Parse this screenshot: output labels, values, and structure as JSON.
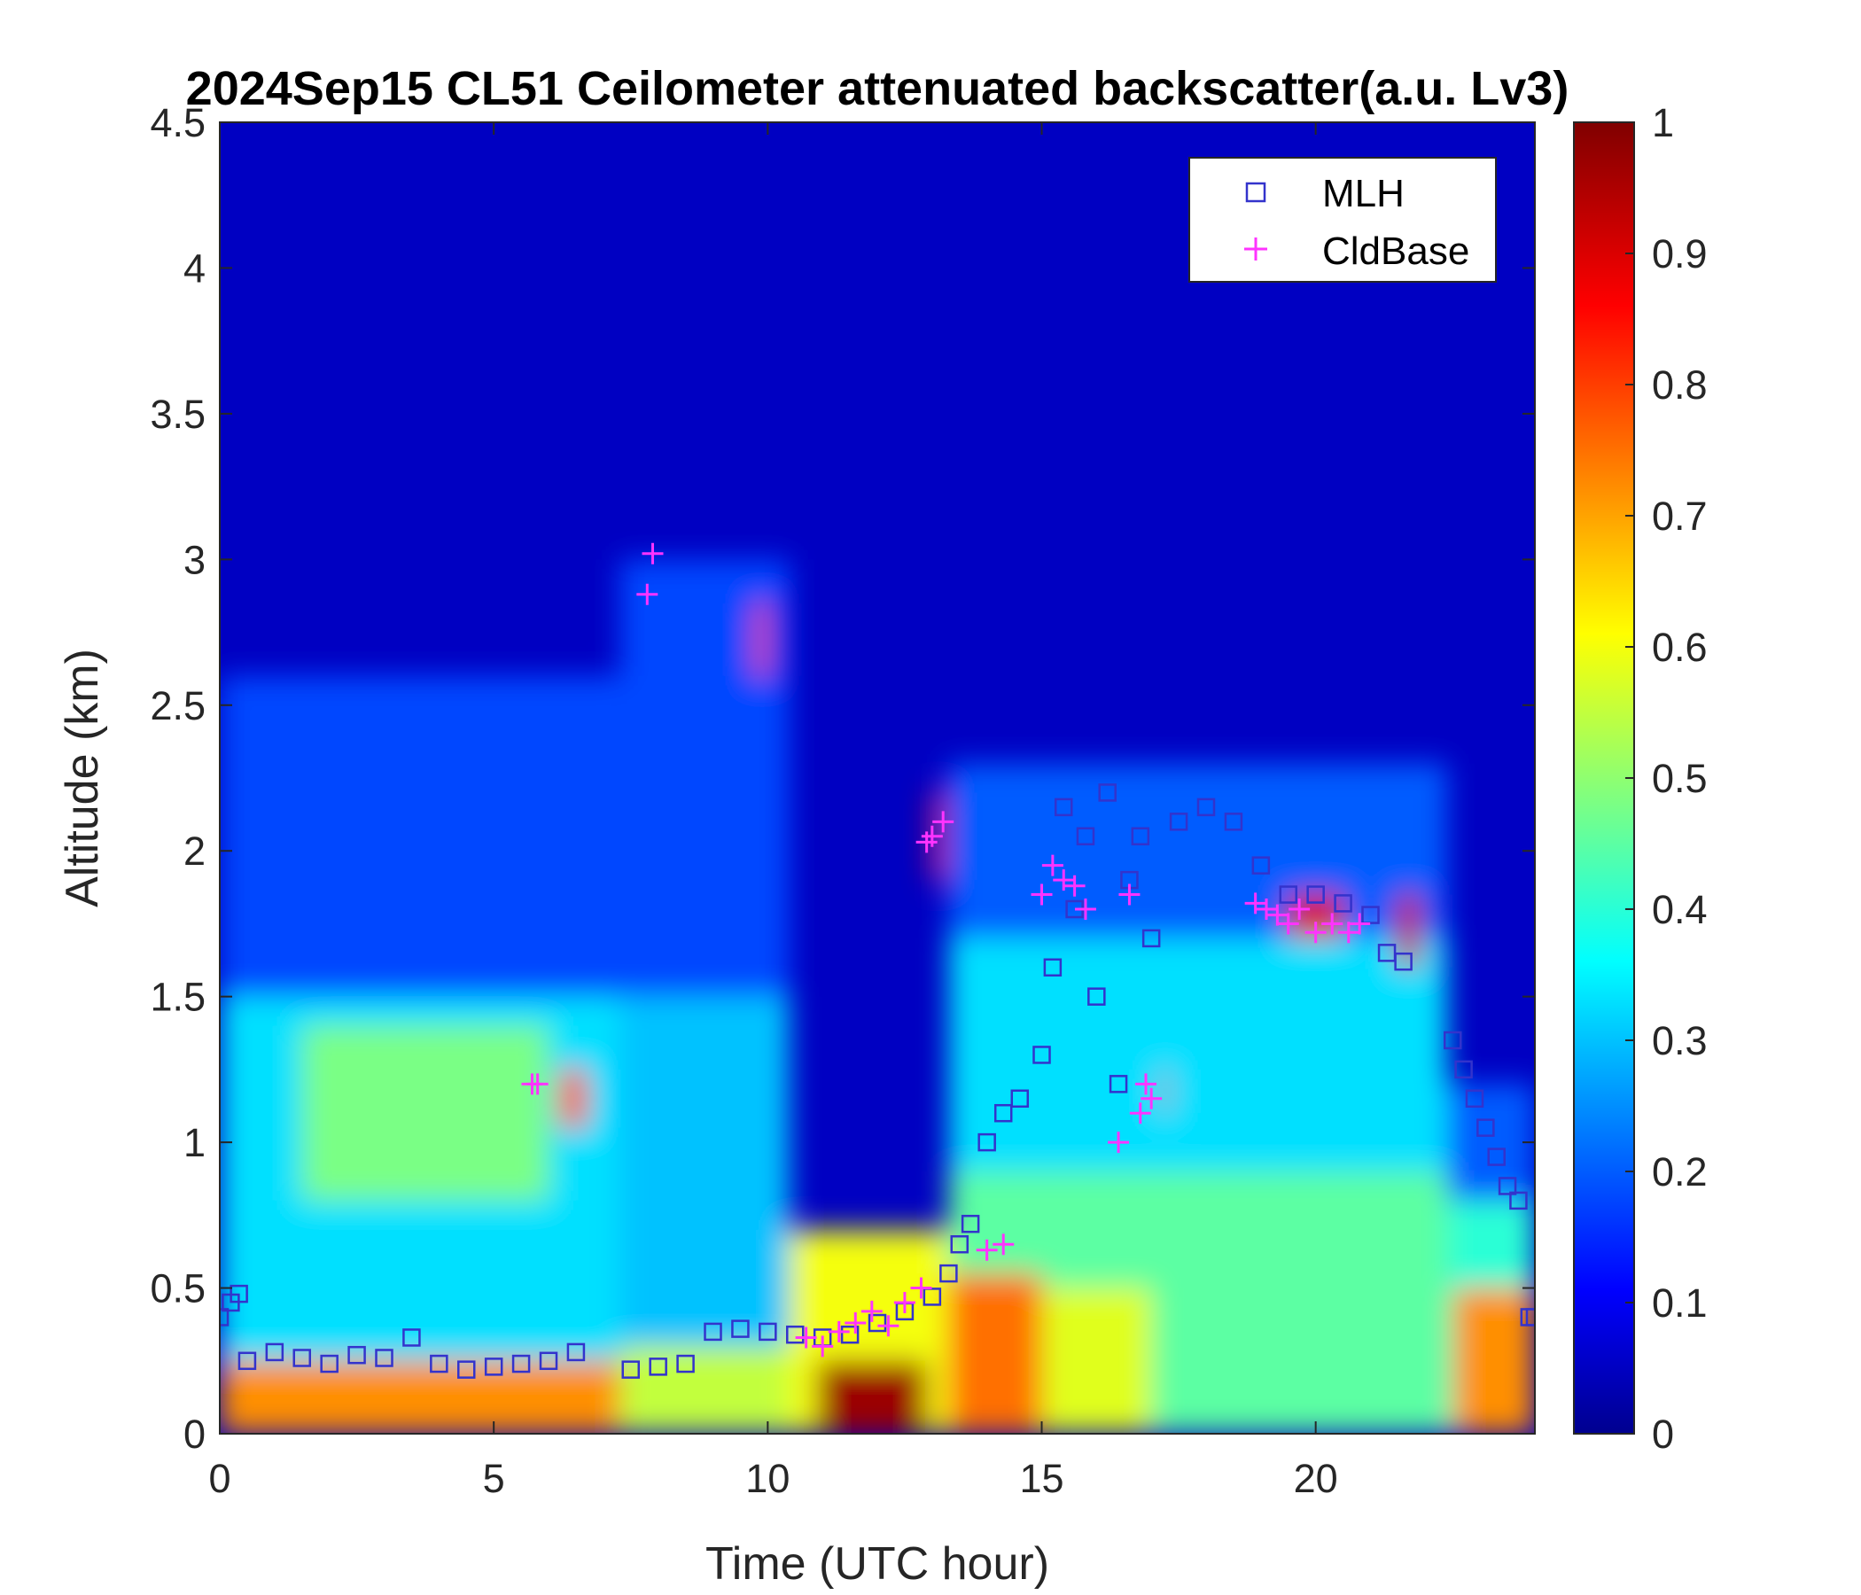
{
  "chart_data": {
    "type": "heatmap",
    "title": "2024Sep15 CL51 Ceilometer attenuated backscatter(a.u. Lv3)",
    "xlabel": "Time (UTC hour)",
    "ylabel": "Altitude (km)",
    "xlim": [
      0,
      24
    ],
    "ylim": [
      0,
      4.5
    ],
    "x_ticks": [
      0,
      5,
      10,
      15,
      20
    ],
    "x_tick_labels": [
      "0",
      "5",
      "10",
      "15",
      "20"
    ],
    "y_ticks": [
      0,
      0.5,
      1,
      1.5,
      2,
      2.5,
      3,
      3.5,
      4,
      4.5
    ],
    "y_tick_labels": [
      "0",
      "0.5",
      "1",
      "1.5",
      "2",
      "2.5",
      "3",
      "3.5",
      "4",
      "4.5"
    ],
    "colorbar": {
      "colormap": "jet",
      "lim": [
        0,
        1
      ],
      "ticks": [
        0,
        0.1,
        0.2,
        0.3,
        0.4,
        0.5,
        0.6,
        0.7,
        0.8,
        0.9,
        1
      ],
      "tick_labels": [
        "0",
        "0.1",
        "0.2",
        "0.3",
        "0.4",
        "0.5",
        "0.6",
        "0.7",
        "0.8",
        "0.9",
        "1"
      ]
    },
    "legend": {
      "placement": "top-right",
      "entries": [
        {
          "name": "MLH",
          "marker": "square",
          "color": "#3333cc"
        },
        {
          "name": "CldBase",
          "marker": "plus",
          "color": "#ff33ff"
        }
      ]
    },
    "layers": [
      {
        "x": [
          0,
          7.3
        ],
        "y": [
          0,
          2.6
        ],
        "value": 0.18
      },
      {
        "x": [
          0,
          7.3
        ],
        "y": [
          0,
          1.5
        ],
        "value": 0.33
      },
      {
        "x": [
          1.5,
          6.0
        ],
        "y": [
          0.8,
          1.4
        ],
        "value": 0.48
      },
      {
        "x": [
          0,
          7.3
        ],
        "y": [
          0,
          0.25
        ],
        "value": 0.72
      },
      {
        "x": [
          7.3,
          10.4
        ],
        "y": [
          0,
          3.0
        ],
        "value": 0.18
      },
      {
        "x": [
          7.3,
          10.4
        ],
        "y": [
          0,
          1.5
        ],
        "value": 0.3
      },
      {
        "x": [
          7.3,
          10.4
        ],
        "y": [
          0,
          0.3
        ],
        "value": 0.55
      },
      {
        "x": [
          10.4,
          13.3
        ],
        "y": [
          0,
          0.7
        ],
        "value": 0.6
      },
      {
        "x": [
          10.9,
          12.9
        ],
        "y": [
          0,
          0.25
        ],
        "value": 0.97
      },
      {
        "x": [
          13.3,
          22.4
        ],
        "y": [
          0,
          2.3
        ],
        "value": 0.2
      },
      {
        "x": [
          13.3,
          22.4
        ],
        "y": [
          0,
          1.7
        ],
        "value": 0.33
      },
      {
        "x": [
          13.3,
          22.4
        ],
        "y": [
          0,
          0.9
        ],
        "value": 0.45
      },
      {
        "x": [
          13.3,
          15.0
        ],
        "y": [
          0,
          0.55
        ],
        "value": 0.75
      },
      {
        "x": [
          15.0,
          17.0
        ],
        "y": [
          0,
          0.5
        ],
        "value": 0.58
      },
      {
        "x": [
          22.4,
          24
        ],
        "y": [
          0,
          1.2
        ],
        "value": 0.2
      },
      {
        "x": [
          22.4,
          24
        ],
        "y": [
          0,
          0.8
        ],
        "value": 0.4
      },
      {
        "x": [
          22.5,
          24
        ],
        "y": [
          0,
          0.5
        ],
        "value": 0.72
      },
      {
        "x": [
          6.2,
          6.7
        ],
        "y": [
          1.05,
          1.25
        ],
        "value": 0.78
      },
      {
        "x": [
          9.8,
          10.0
        ],
        "y": [
          2.6,
          2.85
        ],
        "value": 0.8
      },
      {
        "x": [
          13.0,
          13.2
        ],
        "y": [
          1.9,
          2.2
        ],
        "value": 0.85
      },
      {
        "x": [
          17.2,
          17.3
        ],
        "y": [
          1.1,
          1.25
        ],
        "value": 0.9
      },
      {
        "x": [
          19.5,
          20.5
        ],
        "y": [
          1.7,
          1.85
        ],
        "value": 0.9
      },
      {
        "x": [
          21.5,
          21.9
        ],
        "y": [
          1.6,
          1.85
        ],
        "value": 0.92
      }
    ],
    "series": [
      {
        "name": "MLH",
        "x": [
          0,
          0.2,
          0.35,
          0.5,
          1,
          1.5,
          2,
          2.5,
          3,
          3.5,
          4,
          4.5,
          5,
          5.5,
          6,
          6.5,
          7.5,
          8,
          8.5,
          9,
          9.5,
          10,
          10.5,
          11,
          11.5,
          12,
          12.5,
          13,
          13.3,
          13.5,
          13.7,
          14,
          14.3,
          14.6,
          15,
          15.2,
          15.4,
          15.6,
          15.8,
          16,
          16.2,
          16.4,
          16.6,
          16.8,
          17,
          17.5,
          18,
          18.5,
          19,
          19.5,
          20,
          20.5,
          21,
          21.3,
          21.6,
          22.5,
          22.7,
          22.9,
          23.1,
          23.3,
          23.5,
          23.7,
          23.9,
          24
        ],
        "y": [
          0.4,
          0.45,
          0.48,
          0.25,
          0.28,
          0.26,
          0.24,
          0.27,
          0.26,
          0.33,
          0.24,
          0.22,
          0.23,
          0.24,
          0.25,
          0.28,
          0.22,
          0.23,
          0.24,
          0.35,
          0.36,
          0.35,
          0.34,
          0.33,
          0.34,
          0.38,
          0.42,
          0.47,
          0.55,
          0.65,
          0.72,
          1.0,
          1.1,
          1.15,
          1.3,
          1.6,
          2.15,
          1.8,
          2.05,
          1.5,
          2.2,
          1.2,
          1.9,
          2.05,
          1.7,
          2.1,
          2.15,
          2.1,
          1.95,
          1.85,
          1.85,
          1.82,
          1.78,
          1.65,
          1.62,
          1.35,
          1.25,
          1.15,
          1.05,
          0.95,
          0.85,
          0.8,
          0.4,
          0.4
        ]
      },
      {
        "name": "CldBase",
        "x": [
          5.7,
          5.8,
          7.8,
          7.9,
          10.7,
          11.0,
          11.3,
          11.6,
          11.9,
          12.2,
          12.5,
          12.8,
          12.9,
          13.0,
          13.2,
          14.0,
          14.3,
          15.0,
          15.2,
          15.4,
          15.6,
          15.8,
          16.4,
          16.6,
          16.8,
          16.9,
          17.0,
          18.9,
          19.1,
          19.3,
          19.5,
          19.7,
          20.0,
          20.3,
          20.6,
          20.8
        ],
        "y": [
          1.2,
          1.2,
          2.88,
          3.02,
          0.33,
          0.3,
          0.35,
          0.38,
          0.42,
          0.37,
          0.45,
          0.5,
          2.03,
          2.05,
          2.1,
          0.63,
          0.65,
          1.85,
          1.95,
          1.9,
          1.88,
          1.8,
          1.0,
          1.85,
          1.1,
          1.2,
          1.15,
          1.82,
          1.8,
          1.78,
          1.75,
          1.8,
          1.72,
          1.75,
          1.72,
          1.75
        ]
      }
    ]
  }
}
